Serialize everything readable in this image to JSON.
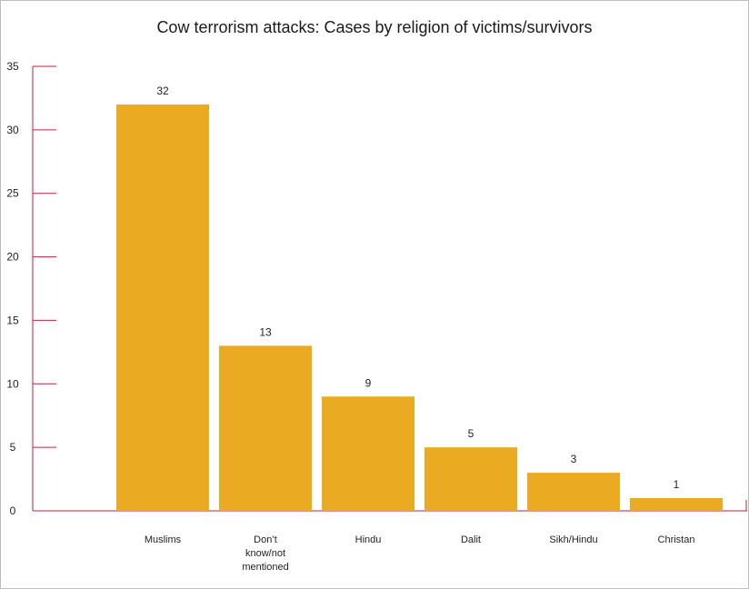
{
  "chart_data": {
    "type": "bar",
    "title": "Cow terrorism attacks: Cases by religion of victims/survivors",
    "categories": [
      [
        "Muslims"
      ],
      [
        "Don’t",
        "know/not",
        "mentioned"
      ],
      [
        "Hindu"
      ],
      [
        "Dalit"
      ],
      [
        "Sikh/Hindu"
      ],
      [
        "Christan"
      ]
    ],
    "values": [
      32,
      13,
      9,
      5,
      3,
      1
    ],
    "value_labels": [
      "32",
      "13",
      "9",
      "5",
      "3",
      "1"
    ],
    "yticks": [
      "0",
      "5",
      "10",
      "15",
      "20",
      "25",
      "30",
      "35"
    ],
    "ylim": [
      0,
      35
    ],
    "grid": false,
    "bar_color": "#EAAA22",
    "axis_color": "#C0203A",
    "xlabel": "",
    "ylabel": ""
  }
}
